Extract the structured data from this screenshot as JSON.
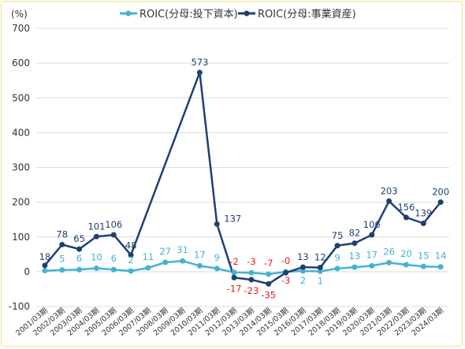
{
  "chart_data": {
    "type": "line",
    "ylabel": "(%)",
    "ylim": [
      -100,
      700
    ],
    "yticks": [
      -100,
      0,
      100,
      200,
      300,
      400,
      500,
      600,
      700
    ],
    "grid": true,
    "legend_position": "top",
    "categories": [
      "2001/03期",
      "2002/03期",
      "2003/03期",
      "2004/03期",
      "2005/03期",
      "2006/03期",
      "2007/03期",
      "2008/03期",
      "2009/03期",
      "2010/03期",
      "2011/03期",
      "2012/03期",
      "2013/03期",
      "2014/03期",
      "2015/03期",
      "2016/03期",
      "2017/03期",
      "2018/03期",
      "2019/03期",
      "2020/03期",
      "2021/03期",
      "2022/03期",
      "2023/03期",
      "2024/03期"
    ],
    "series": [
      {
        "name": "ROIC(分母:投下資本)",
        "color": "#45b3cf",
        "values": [
          3,
          5,
          6,
          10,
          6,
          2,
          11,
          27,
          31,
          17,
          9,
          -2,
          -3,
          -7,
          0,
          2,
          1,
          9,
          13,
          17,
          26,
          20,
          15,
          14
        ],
        "labels": [
          "",
          "5",
          "6",
          "10",
          "6",
          "2",
          "11",
          "27",
          "31",
          "17",
          "9",
          "-2",
          "-3",
          "-7",
          "-0",
          "2",
          "1",
          "9",
          "13",
          "17",
          "26",
          "20",
          "15",
          "14"
        ]
      },
      {
        "name": "ROIC(分母:事業資産)",
        "color": "#1f3f73",
        "values": [
          18,
          78,
          65,
          101,
          106,
          48,
          null,
          null,
          null,
          573,
          137,
          -17,
          -23,
          -35,
          -3,
          13,
          12,
          75,
          82,
          106,
          203,
          156,
          139,
          200
        ],
        "labels": [
          "18",
          "78",
          "65",
          "101",
          "106",
          "48",
          "",
          "",
          "",
          "573",
          "137",
          "-17",
          "-23",
          "-35",
          "-3",
          "13",
          "12",
          "75",
          "82",
          "106",
          "203",
          "156",
          "139",
          "200"
        ]
      }
    ]
  }
}
